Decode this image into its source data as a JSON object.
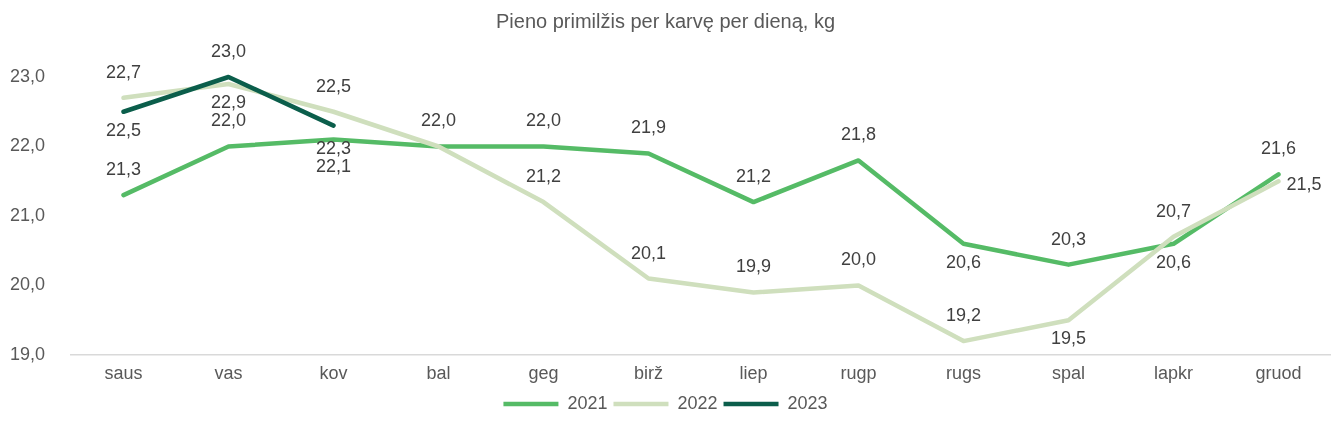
{
  "chart_data": {
    "type": "line",
    "title": "Pieno primilžis per karvę per dieną, kg",
    "categories": [
      "saus",
      "vas",
      "kov",
      "bal",
      "geg",
      "birž",
      "liep",
      "rugp",
      "rugs",
      "spal",
      "lapkr",
      "gruod"
    ],
    "series": [
      {
        "name": "2021",
        "color": "#55bb66",
        "values": [
          21.3,
          22.0,
          22.1,
          22.0,
          22.0,
          21.9,
          21.2,
          21.8,
          20.6,
          20.3,
          20.6,
          21.6
        ],
        "value_labels": [
          "21,3",
          "22,0",
          "22,1",
          "22,0",
          "22,0",
          "21,9",
          "21,2",
          "21,8",
          "20,6",
          "20,3",
          "20,6",
          "21,6"
        ]
      },
      {
        "name": "2022",
        "color": "#cfdfbd",
        "values": [
          22.7,
          22.9,
          22.5,
          22.0,
          21.2,
          20.1,
          19.9,
          20.0,
          19.2,
          19.5,
          20.7,
          21.5
        ],
        "value_labels": [
          "22,7",
          "22,9",
          "22,5",
          null,
          "21,2",
          "20,1",
          "19,9",
          "20,0",
          "19,2",
          "19,5",
          "20,7",
          "21,5"
        ]
      },
      {
        "name": "2023",
        "color": "#0b5e4b",
        "values": [
          22.5,
          23.0,
          22.3,
          null,
          null,
          null,
          null,
          null,
          null,
          null,
          null,
          null
        ],
        "value_labels": [
          "22,5",
          "23,0",
          "22,3",
          null,
          null,
          null,
          null,
          null,
          null,
          null,
          null,
          null
        ]
      }
    ],
    "ylim": [
      19,
      23
    ],
    "yticks": [
      {
        "value": 19,
        "label": "19,0"
      },
      {
        "value": 20,
        "label": "20,0"
      },
      {
        "value": 21,
        "label": "21,0"
      },
      {
        "value": 22,
        "label": "22,0"
      },
      {
        "value": 23,
        "label": "23,0"
      }
    ],
    "grid": false,
    "legend": "bottom",
    "marker": "none"
  }
}
